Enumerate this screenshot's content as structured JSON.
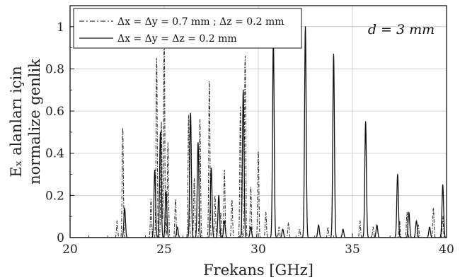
{
  "chart_data": {
    "type": "line",
    "xlabel": "Frekans  [GHz]",
    "ylabel": [
      "Eₓ  alanları için",
      "normalize genlik"
    ],
    "xlim": [
      20,
      40
    ],
    "ylim": [
      0,
      1.1
    ],
    "xticks": [
      "20",
      "25",
      "30",
      "35",
      "40"
    ],
    "yticks": [
      "0",
      "0.2",
      "0.4",
      "0.6",
      "0.8",
      "1"
    ],
    "grid": true,
    "legend_position": "top-left",
    "annotation": "d = 3 mm",
    "series": [
      {
        "name": "Δx = Δy = 0.7 mm ; Δz = 0.2 mm",
        "style": "dash-dot",
        "peaks": [
          {
            "x": 22.5,
            "y": 0.08
          },
          {
            "x": 22.8,
            "y": 0.52
          },
          {
            "x": 24.3,
            "y": 0.18
          },
          {
            "x": 24.6,
            "y": 0.85
          },
          {
            "x": 24.85,
            "y": 0.55
          },
          {
            "x": 25.0,
            "y": 0.98
          },
          {
            "x": 25.2,
            "y": 0.45
          },
          {
            "x": 25.6,
            "y": 0.18
          },
          {
            "x": 26.3,
            "y": 0.58
          },
          {
            "x": 26.6,
            "y": 0.28
          },
          {
            "x": 26.9,
            "y": 0.56
          },
          {
            "x": 27.4,
            "y": 0.74
          },
          {
            "x": 27.7,
            "y": 0.2
          },
          {
            "x": 28.0,
            "y": 0.12
          },
          {
            "x": 28.2,
            "y": 0.32
          },
          {
            "x": 28.6,
            "y": 0.18
          },
          {
            "x": 29.05,
            "y": 0.62
          },
          {
            "x": 29.3,
            "y": 0.86
          },
          {
            "x": 29.6,
            "y": 0.24
          },
          {
            "x": 30.0,
            "y": 0.41
          },
          {
            "x": 30.4,
            "y": 0.12
          },
          {
            "x": 31.1,
            "y": 0.05
          },
          {
            "x": 31.6,
            "y": 0.07
          },
          {
            "x": 32.2,
            "y": 0.04
          },
          {
            "x": 33.7,
            "y": 0.05
          },
          {
            "x": 35.4,
            "y": 0.08
          },
          {
            "x": 36.1,
            "y": 0.05
          },
          {
            "x": 37.5,
            "y": 0.08
          },
          {
            "x": 37.9,
            "y": 0.12
          },
          {
            "x": 38.5,
            "y": 0.06
          },
          {
            "x": 39.3,
            "y": 0.14
          },
          {
            "x": 39.8,
            "y": 0.1
          }
        ]
      },
      {
        "name": "Δx = Δy = Δz = 0.2 mm",
        "style": "solid",
        "peaks": [
          {
            "x": 22.9,
            "y": 0.14
          },
          {
            "x": 24.5,
            "y": 0.32
          },
          {
            "x": 24.8,
            "y": 0.5
          },
          {
            "x": 25.1,
            "y": 0.22
          },
          {
            "x": 25.7,
            "y": 0.05
          },
          {
            "x": 26.4,
            "y": 0.59
          },
          {
            "x": 26.8,
            "y": 0.45
          },
          {
            "x": 27.5,
            "y": 0.33
          },
          {
            "x": 27.9,
            "y": 0.2
          },
          {
            "x": 28.2,
            "y": 0.08
          },
          {
            "x": 29.2,
            "y": 0.7
          },
          {
            "x": 29.6,
            "y": 0.05
          },
          {
            "x": 30.8,
            "y": 0.94
          },
          {
            "x": 31.3,
            "y": 0.04
          },
          {
            "x": 32.5,
            "y": 1.0
          },
          {
            "x": 33.2,
            "y": 0.06
          },
          {
            "x": 34.0,
            "y": 0.87
          },
          {
            "x": 34.5,
            "y": 0.04
          },
          {
            "x": 35.7,
            "y": 0.55
          },
          {
            "x": 36.3,
            "y": 0.06
          },
          {
            "x": 37.4,
            "y": 0.3
          },
          {
            "x": 38.0,
            "y": 0.12
          },
          {
            "x": 38.4,
            "y": 0.08
          },
          {
            "x": 39.1,
            "y": 0.05
          },
          {
            "x": 39.8,
            "y": 0.25
          }
        ]
      }
    ]
  }
}
